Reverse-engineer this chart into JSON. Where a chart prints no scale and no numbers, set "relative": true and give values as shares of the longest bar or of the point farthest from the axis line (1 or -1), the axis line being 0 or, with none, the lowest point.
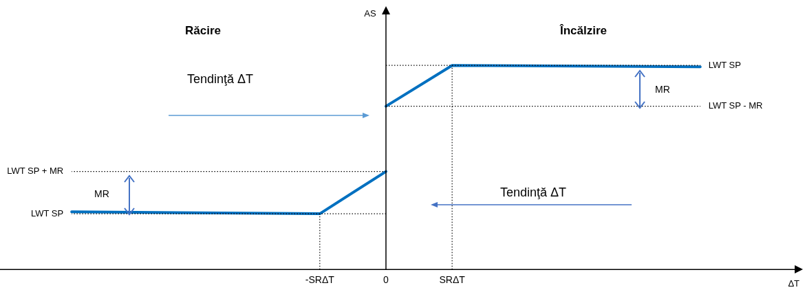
{
  "chart_data": {
    "type": "line",
    "relative": true,
    "xlabel": "ΔT",
    "categories": [
      null,
      null,
      null,
      null,
      null,
      null,
      null,
      null,
      null,
      null,
      null,
      null,
      null,
      null,
      null,
      null,
      null,
      null,
      null,
      "-SRΔT",
      null,
      null,
      null,
      "0",
      null,
      null,
      null,
      "SRΔT",
      null,
      null,
      null,
      null,
      null,
      null,
      null,
      null,
      null,
      null,
      null,
      null,
      null,
      null,
      null,
      null,
      null,
      null,
      null,
      null,
      null
    ],
    "series": [
      {
        "color": "#0070c0",
        "values": [
          null,
          null,
          null,
          null,
          null,
          null,
          null,
          null,
          null,
          null,
          null,
          null,
          null,
          null,
          null,
          null,
          null,
          null,
          null,
          null,
          null,
          null,
          null,
          0.8,
          null,
          null,
          null,
          1,
          null,
          null,
          null,
          null,
          null,
          null,
          null,
          null,
          null,
          null,
          null,
          null,
          null,
          null,
          0.993,
          null,
          null,
          null,
          null,
          null,
          null
        ]
      },
      {
        "color": "#0070c0",
        "values": [
          null,
          null,
          null,
          null,
          0.283,
          null,
          null,
          null,
          null,
          null,
          null,
          null,
          null,
          null,
          null,
          null,
          null,
          null,
          null,
          0.273,
          null,
          null,
          null,
          0.48,
          null,
          null,
          null,
          null,
          null,
          null,
          null,
          null,
          null,
          null,
          null,
          null,
          null,
          null,
          null,
          null,
          null,
          null,
          null,
          null,
          null,
          null,
          null,
          null,
          null
        ]
      }
    ],
    "ref_lines": [
      {
        "axis": "y",
        "value": 1,
        "label": "LWT SP",
        "line_style": "dotted",
        "color": "#000000"
      },
      {
        "axis": "y",
        "value": 0.8,
        "label": "LWT SP - MR",
        "line_style": "dotted",
        "color": "#000000"
      },
      {
        "axis": "y",
        "value": 0.48,
        "label": "LWT SP + MR",
        "line_style": "dotted",
        "color": "#000000"
      },
      {
        "axis": "y",
        "value": 0.273,
        "label": "LWT SP",
        "line_style": "dotted",
        "color": "#000000"
      },
      {
        "axis": "x",
        "value": "SRΔT",
        "line_style": "dotted",
        "color": "#000000"
      },
      {
        "axis": "x",
        "value": "-SRΔT",
        "line_style": "dotted",
        "color": "#000000"
      }
    ],
    "annotations": [
      "AS",
      "Răcire",
      "Încălzire",
      "Tendinţă ΔT",
      "MR",
      "MR",
      "Tendinţă ΔT"
    ],
    "marker": "none",
    "line_style": "solid",
    "grid": false,
    "legend": false
  }
}
